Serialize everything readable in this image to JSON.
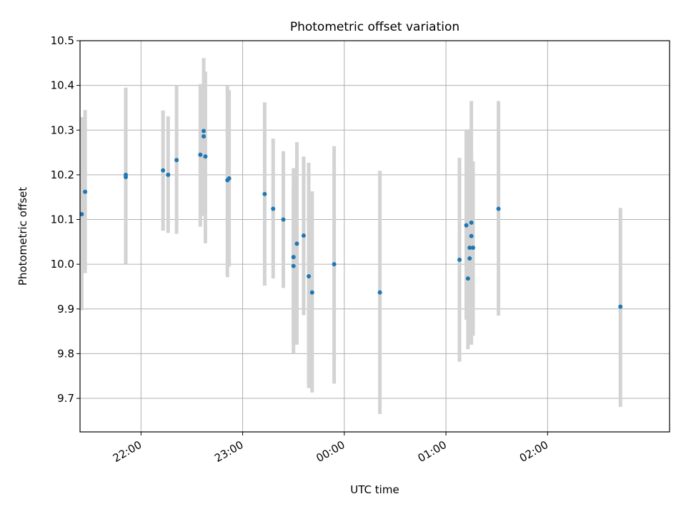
{
  "chart_data": {
    "type": "scatter",
    "title": "Photometric offset variation",
    "xlabel": "UTC time",
    "ylabel": "Photometric offset",
    "x_ticks": [
      "22:00",
      "23:00",
      "00:00",
      "01:00",
      "02:00"
    ],
    "y_ticks": [
      "9.7",
      "9.8",
      "9.9",
      "10.0",
      "10.1",
      "10.2",
      "10.3",
      "10.4",
      "10.5"
    ],
    "xlim": [
      "21:24",
      "03:12"
    ],
    "ylim": [
      9.625,
      10.5
    ],
    "grid": true,
    "colors": {
      "point": "#1f77b4",
      "errorbar": "#d3d3d3",
      "grid": "#b0b0b0"
    },
    "series": [
      {
        "x": [
          "21:25",
          "21:27",
          "21:51",
          "21:51",
          "22:13",
          "22:16",
          "22:21",
          "22:35",
          "22:37",
          "22:37",
          "22:38",
          "22:51",
          "22:52",
          "23:13",
          "23:18",
          "23:24",
          "23:30",
          "23:30",
          "23:32",
          "23:36",
          "23:39",
          "23:41",
          "23:54",
          "00:21",
          "01:08",
          "01:12",
          "01:13",
          "01:14",
          "01:14",
          "01:15",
          "01:15",
          "01:16",
          "01:31",
          "02:43"
        ],
        "y": [
          10.112,
          10.162,
          10.195,
          10.2,
          10.21,
          10.2,
          10.233,
          10.245,
          10.298,
          10.286,
          10.241,
          10.188,
          10.192,
          10.157,
          10.124,
          10.1,
          10.016,
          9.996,
          10.046,
          10.064,
          9.973,
          9.937,
          10.0,
          9.937,
          10.01,
          10.087,
          9.968,
          10.037,
          10.013,
          10.063,
          10.093,
          10.037,
          10.124,
          9.905
        ],
        "y_lower": [
          9.897,
          9.98,
          10.001,
          10.005,
          10.075,
          10.07,
          10.068,
          10.084,
          10.161,
          10.108,
          10.047,
          9.971,
          9.995,
          9.952,
          9.968,
          9.947,
          9.8,
          9.82,
          9.82,
          9.886,
          9.723,
          9.713,
          9.733,
          9.665,
          9.782,
          9.876,
          9.81,
          9.838,
          9.9,
          9.875,
          9.82,
          9.84,
          9.885,
          9.681
        ],
        "y_upper": [
          10.329,
          10.345,
          10.386,
          10.395,
          10.344,
          10.331,
          10.4,
          10.403,
          10.461,
          10.433,
          10.431,
          10.4,
          10.389,
          10.362,
          10.281,
          10.253,
          10.215,
          10.173,
          10.273,
          10.241,
          10.227,
          10.163,
          10.264,
          10.209,
          10.238,
          10.3,
          10.126,
          10.302,
          10.128,
          10.251,
          10.365,
          10.23,
          10.365,
          10.126
        ]
      }
    ]
  }
}
